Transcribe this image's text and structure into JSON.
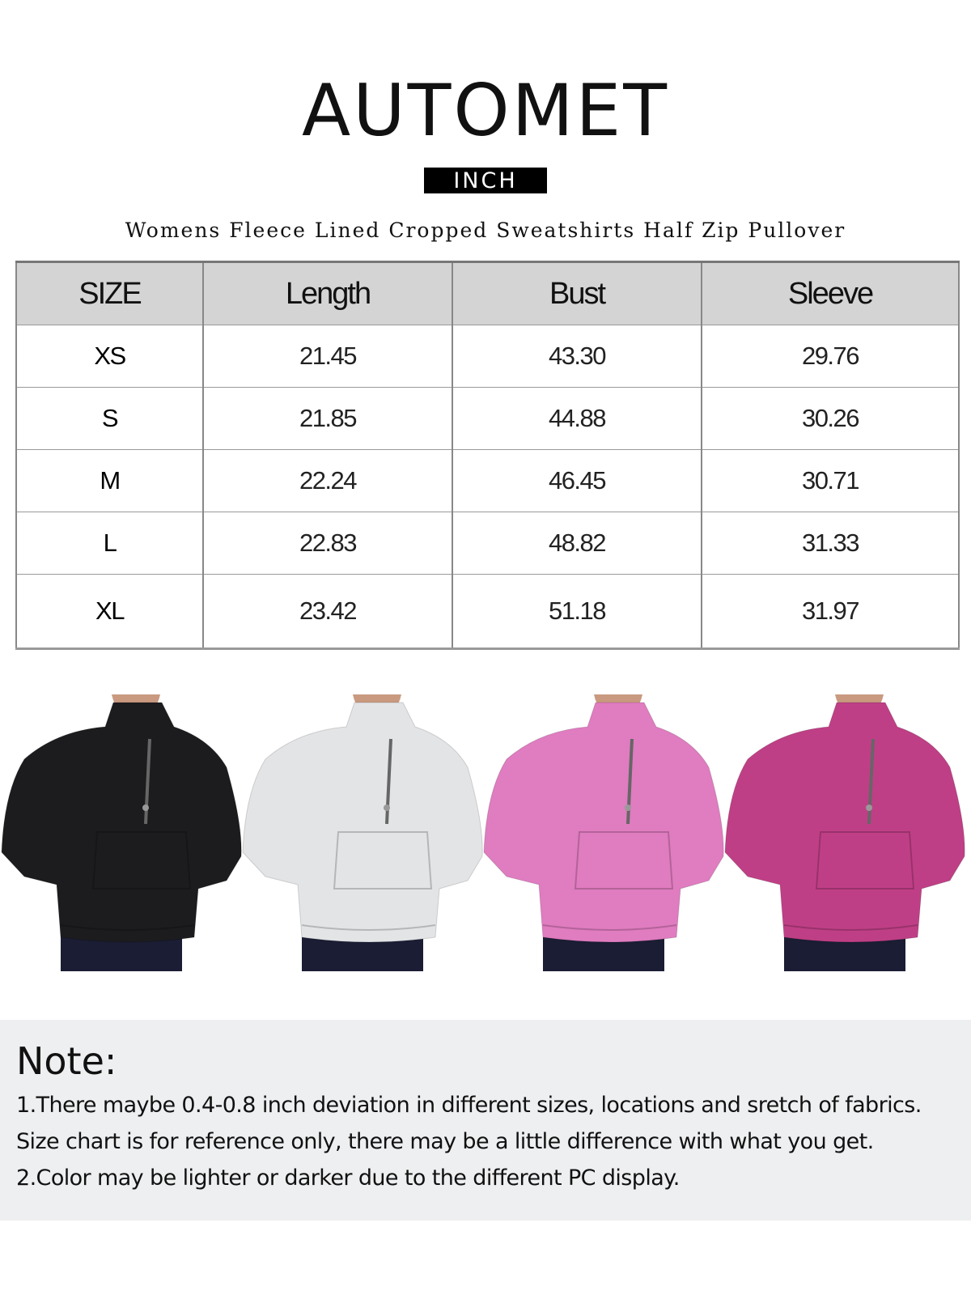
{
  "brand": "AUTOMET",
  "unit": "INCH",
  "product_title": "Womens Fleece Lined Cropped Sweatshirts Half Zip Pullover",
  "table": {
    "headers": [
      "SIZE",
      "Length",
      "Bust",
      "Sleeve"
    ],
    "rows": [
      [
        "XS",
        "21.45",
        "43.30",
        "29.76"
      ],
      [
        "S",
        "21.85",
        "44.88",
        "30.26"
      ],
      [
        "M",
        "22.24",
        "46.45",
        "30.71"
      ],
      [
        "L",
        "22.83",
        "48.82",
        "31.33"
      ],
      [
        "XL",
        "23.42",
        "51.18",
        "31.97"
      ]
    ]
  },
  "photos": [
    {
      "color": "#1c1c1e"
    },
    {
      "color": "#e3e4e6"
    },
    {
      "color": "#e07cc0"
    },
    {
      "color": "#bf3f86"
    }
  ],
  "note": {
    "title": "Note:",
    "lines": [
      "1.There maybe 0.4-0.8 inch deviation in different sizes, locations and sretch of fabrics.",
      "Size chart is for reference only, there may be a little difference with what you get.",
      "2.Color may be lighter or darker due to the different PC display."
    ]
  }
}
